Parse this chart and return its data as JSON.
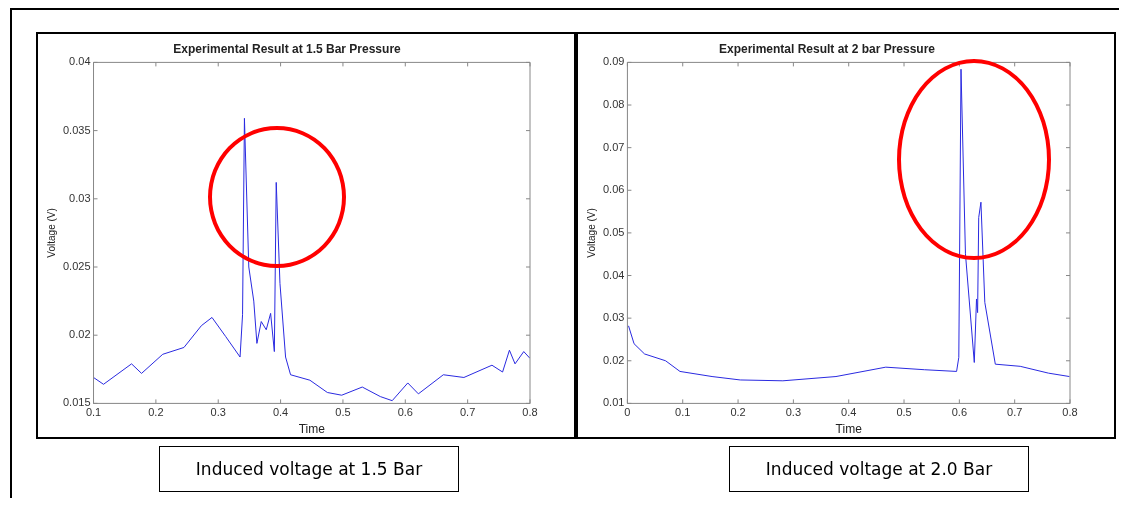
{
  "chart_data": [
    {
      "type": "line",
      "title": "Experimental Result at 1.5 Bar Pressure",
      "xlabel": "Time",
      "ylabel": "Voltage (V)",
      "annotations": [
        "Induced voltage at 1.5 Bar"
      ],
      "xlim": [
        0.1,
        0.8
      ],
      "xticks": [
        0.1,
        0.2,
        0.3,
        0.4,
        0.5,
        0.6,
        0.7,
        0.8
      ],
      "ylim": [
        0.015,
        0.04
      ],
      "yticks": [
        0.015,
        0.02,
        0.025,
        0.03,
        0.035,
        0.04
      ],
      "grid": false,
      "legend": false,
      "marker": "none",
      "line_style": "solid",
      "series": [
        {
          "color": "#2a2ae0",
          "x": [
            0.1,
            0.116,
            0.161,
            0.177,
            0.211,
            0.245,
            0.273,
            0.29,
            0.312,
            0.335,
            0.339,
            0.342,
            0.349,
            0.357,
            0.362,
            0.369,
            0.377,
            0.384,
            0.39,
            0.393,
            0.399,
            0.408,
            0.416,
            0.447,
            0.475,
            0.498,
            0.531,
            0.56,
            0.579,
            0.604,
            0.621,
            0.661,
            0.694,
            0.739,
            0.756,
            0.767,
            0.776,
            0.79,
            0.8
          ],
          "values": [
            0.0169,
            0.0164,
            0.0179,
            0.0172,
            0.0186,
            0.0191,
            0.0207,
            0.0213,
            0.0199,
            0.0184,
            0.0215,
            0.0359,
            0.025,
            0.0225,
            0.0194,
            0.021,
            0.0204,
            0.0216,
            0.0188,
            0.0312,
            0.0238,
            0.0184,
            0.0171,
            0.0167,
            0.0158,
            0.0156,
            0.0162,
            0.0155,
            0.0152,
            0.0165,
            0.0157,
            0.0171,
            0.0169,
            0.0178,
            0.0173,
            0.0189,
            0.0179,
            0.0188,
            0.0183
          ]
        }
      ]
    },
    {
      "type": "line",
      "title": "Experimental Result at 2 bar Pressure",
      "xlabel": "Time",
      "ylabel": "Voltage (V)",
      "annotations": [
        "Induced voltage at 2.0 Bar"
      ],
      "xlim": [
        0,
        0.8
      ],
      "xticks": [
        0,
        0.1,
        0.2,
        0.3,
        0.4,
        0.5,
        0.6,
        0.7,
        0.8
      ],
      "ylim": [
        0.01,
        0.09
      ],
      "yticks": [
        0.01,
        0.02,
        0.03,
        0.04,
        0.05,
        0.06,
        0.07,
        0.08,
        0.09
      ],
      "grid": false,
      "legend": false,
      "marker": "none",
      "line_style": "solid",
      "series": [
        {
          "color": "#2a2ae0",
          "x": [
            0.002,
            0.012,
            0.031,
            0.069,
            0.095,
            0.153,
            0.204,
            0.281,
            0.377,
            0.467,
            0.537,
            0.595,
            0.599,
            0.603,
            0.611,
            0.627,
            0.631,
            0.633,
            0.635,
            0.639,
            0.646,
            0.665,
            0.71,
            0.761,
            0.799
          ],
          "values": [
            0.0282,
            0.024,
            0.0216,
            0.02,
            0.0175,
            0.0163,
            0.0155,
            0.0153,
            0.0163,
            0.0185,
            0.0179,
            0.0175,
            0.0208,
            0.0884,
            0.0451,
            0.0196,
            0.0345,
            0.0313,
            0.0536,
            0.0572,
            0.0337,
            0.0192,
            0.0187,
            0.0171,
            0.0163
          ]
        }
      ]
    }
  ]
}
